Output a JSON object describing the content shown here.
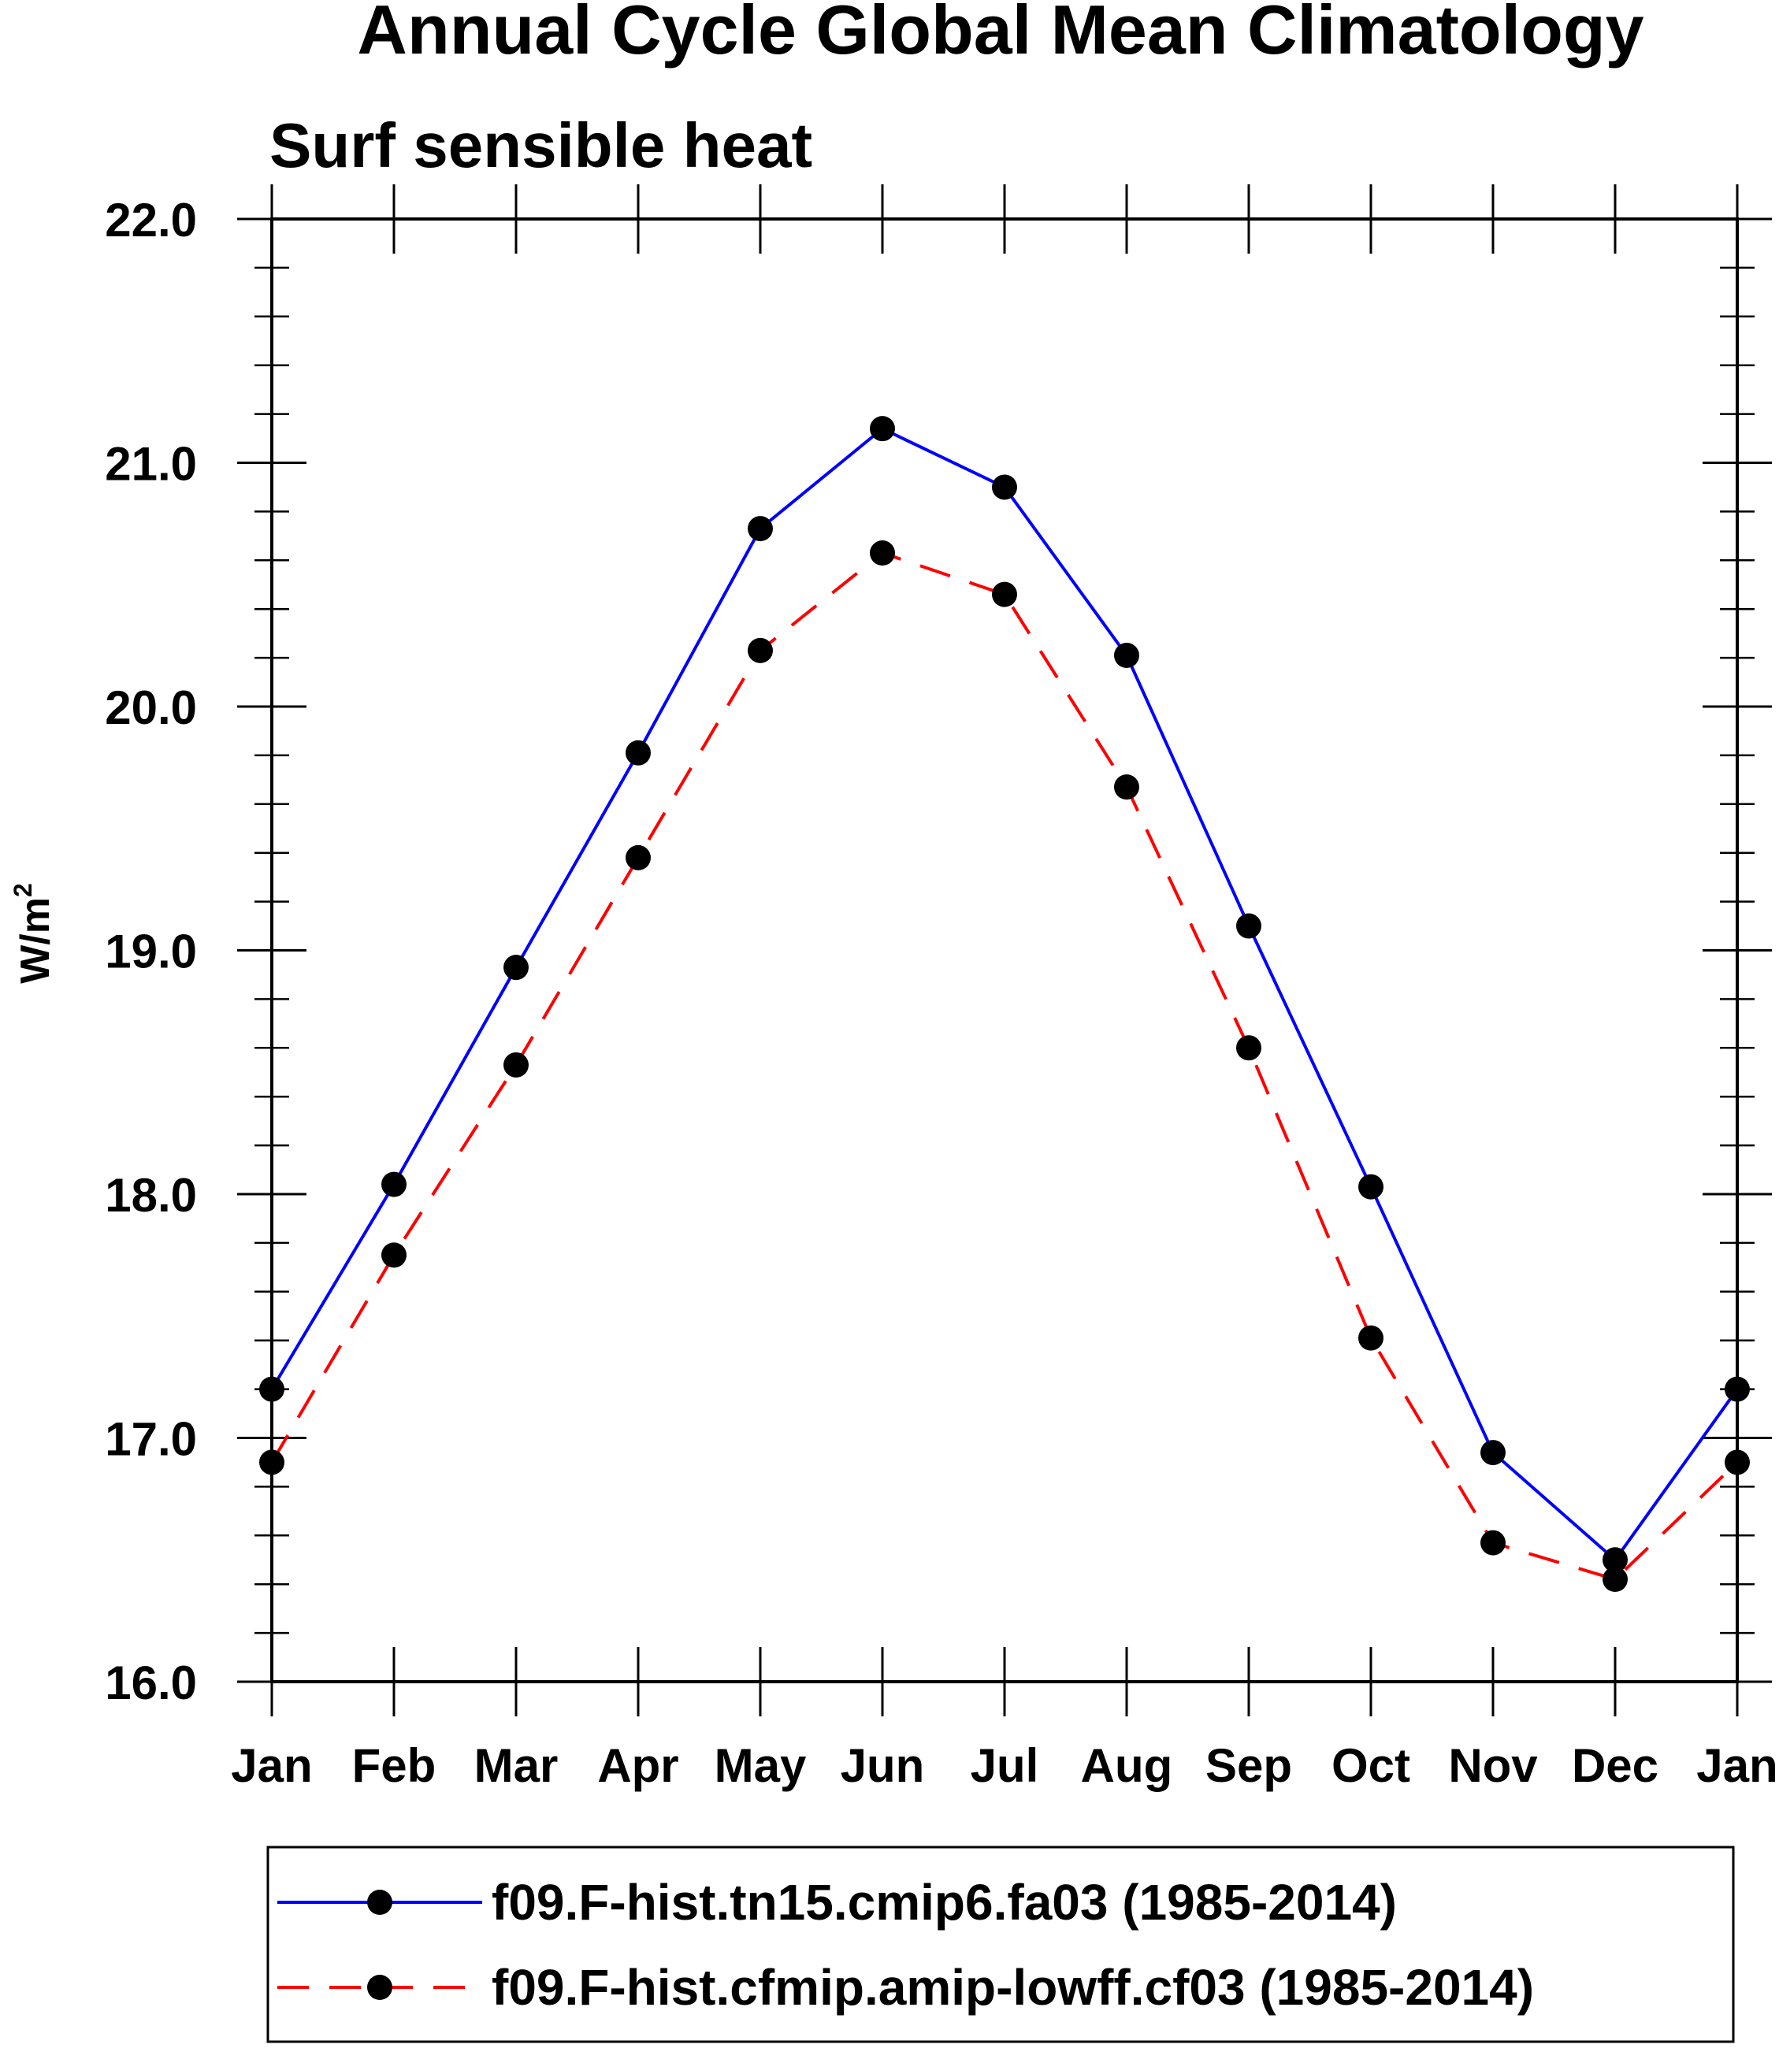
{
  "chart_data": {
    "type": "line",
    "title": "Annual Cycle Global Mean Climatology",
    "subtitle": "Surf sensible heat",
    "ylabel_base": "W/m",
    "ylabel_sup": "2",
    "xlabel": "",
    "categories": [
      "Jan",
      "Feb",
      "Mar",
      "Apr",
      "May",
      "Jun",
      "Jul",
      "Aug",
      "Sep",
      "Oct",
      "Nov",
      "Dec",
      "Jan"
    ],
    "ylim": [
      16.0,
      22.0
    ],
    "yticks": [
      "16.0",
      "17.0",
      "18.0",
      "19.0",
      "20.0",
      "21.0",
      "22.0"
    ],
    "y_minor_step": 0.2,
    "grid": false,
    "legend_position": "bottom",
    "series": [
      {
        "name": "f09.F-hist.tn15.cmip6.fa03 (1985-2014)",
        "color": "#0000ff",
        "dash": "solid",
        "values": [
          17.2,
          18.04,
          18.93,
          19.81,
          20.73,
          21.14,
          20.9,
          20.21,
          19.1,
          18.03,
          16.94,
          16.5,
          17.2
        ]
      },
      {
        "name": "f09.F-hist.cfmip.amip-lowff.cf03 (1985-2014)",
        "color": "#ff0000",
        "dash": "dashed",
        "values": [
          16.9,
          17.75,
          18.53,
          19.38,
          20.23,
          20.63,
          20.46,
          19.67,
          18.6,
          17.41,
          16.57,
          16.42,
          16.9
        ]
      }
    ]
  }
}
